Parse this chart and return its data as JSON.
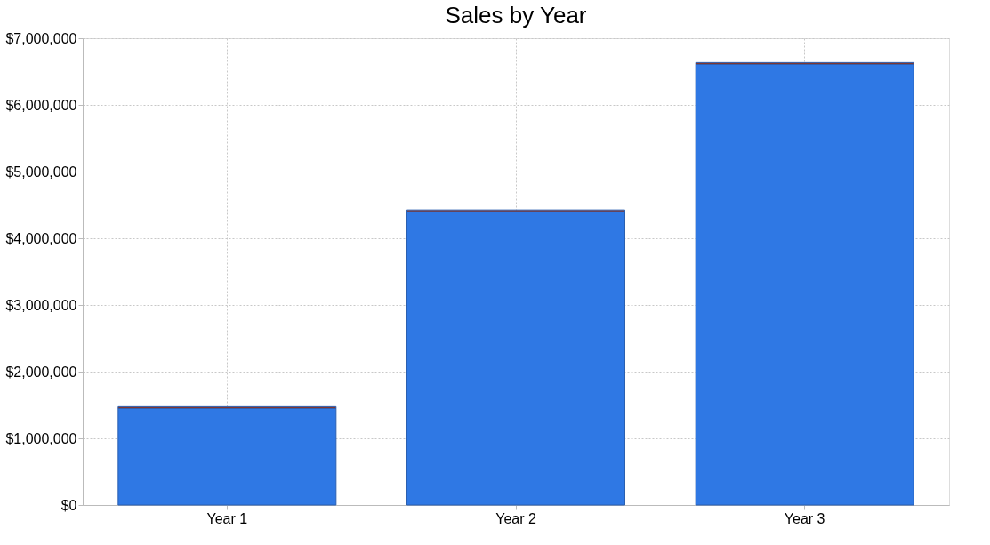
{
  "chart_data": {
    "type": "bar",
    "title": "Sales by Year",
    "categories": [
      "Year 1",
      "Year 2",
      "Year 3"
    ],
    "stacked": true,
    "series": [
      {
        "color": "#2f78e4",
        "values": [
          1450000,
          4400000,
          6610000
        ]
      },
      {
        "color": "#9b2a0a",
        "values": [
          25000,
          25000,
          25000
        ]
      }
    ],
    "ylim": [
      0,
      7000000
    ],
    "yticks": [
      {
        "value": 0,
        "label": "$0"
      },
      {
        "value": 1000000,
        "label": "$1,000,000"
      },
      {
        "value": 2000000,
        "label": "$2,000,000"
      },
      {
        "value": 3000000,
        "label": "$3,000,000"
      },
      {
        "value": 4000000,
        "label": "$4,000,000"
      },
      {
        "value": 5000000,
        "label": "$5,000,000"
      },
      {
        "value": 6000000,
        "label": "$6,000,000"
      },
      {
        "value": 7000000,
        "label": "$7,000,000"
      }
    ],
    "grid": true,
    "legend": false
  }
}
